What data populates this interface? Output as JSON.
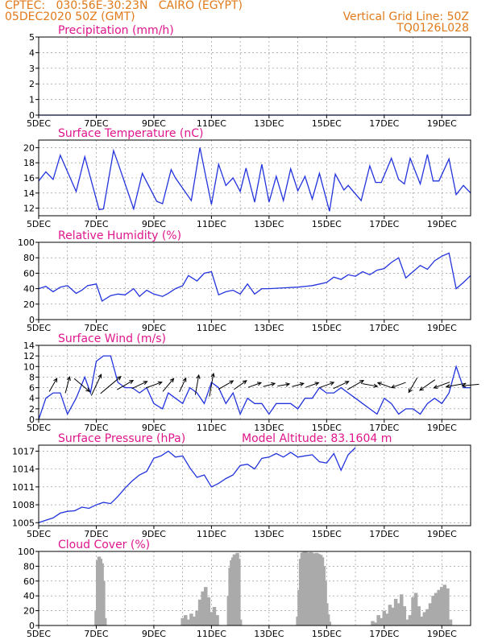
{
  "header": {
    "left_line1": "CPTEC:   030:56E-30:23N   CAIRO (EGYPT)",
    "left_line2": "05DEC2020 50Z (GMT)",
    "right_line1": "Vertical Grid Line: 50Z",
    "right_line2": "TQ0126L028",
    "model_altitude": "Model Altitude: 83.1604 m"
  },
  "colors": {
    "header": "#e07a1a",
    "title": "#e0168c",
    "line": "#2233dd",
    "bar": "#aaaaaa",
    "grid": "#888888"
  },
  "x_tick_labels": [
    "5DEC",
    "7DEC",
    "9DEC",
    "11DEC",
    "13DEC",
    "15DEC",
    "17DEC",
    "19DEC"
  ],
  "chart_data": [
    {
      "type": "line",
      "title": "Precipitation (mm/h)",
      "x_ticks": [
        "5DEC",
        "7DEC",
        "9DEC",
        "11DEC",
        "13DEC",
        "15DEC",
        "17DEC",
        "19DEC"
      ],
      "x_range_days": [
        5,
        20
      ],
      "ylim": [
        0,
        5
      ],
      "yticks": [
        0,
        1,
        2,
        3,
        4,
        5
      ],
      "x": [
        5,
        20
      ],
      "y": [
        0,
        0
      ]
    },
    {
      "type": "line",
      "title": "Surface Temperature (nC)",
      "x_ticks": [
        "5DEC",
        "7DEC",
        "9DEC",
        "11DEC",
        "13DEC",
        "15DEC",
        "17DEC",
        "19DEC"
      ],
      "x_range_days": [
        5,
        20
      ],
      "ylim": [
        11,
        21
      ],
      "yticks": [
        12,
        14,
        16,
        18,
        20
      ],
      "x": [
        5.0,
        5.25,
        5.5,
        5.75,
        6.3,
        6.6,
        7.1,
        7.25,
        7.6,
        7.75,
        8.3,
        8.6,
        9.1,
        9.3,
        9.6,
        9.75,
        10.3,
        10.6,
        11.0,
        11.25,
        11.5,
        11.75,
        12.0,
        12.2,
        12.5,
        12.75,
        13.0,
        13.25,
        13.5,
        13.75,
        14.0,
        14.25,
        14.5,
        14.75,
        15.1,
        15.3,
        15.6,
        15.75,
        16.2,
        16.5,
        16.7,
        16.9,
        17.25,
        17.5,
        17.7,
        17.9,
        18.25,
        18.5,
        18.7,
        18.9,
        19.25,
        19.5,
        19.75,
        20.0
      ],
      "y": [
        15.6,
        16.8,
        15.8,
        19.0,
        14.2,
        18.8,
        11.8,
        11.9,
        19.6,
        18.0,
        11.9,
        16.6,
        12.9,
        12.6,
        17.1,
        16.0,
        13.0,
        20.0,
        12.5,
        17.8,
        15.0,
        16.0,
        14.2,
        17.3,
        12.8,
        17.8,
        12.8,
        16.2,
        13.0,
        17.2,
        14.3,
        16.2,
        13.2,
        16.6,
        11.6,
        16.5,
        14.4,
        15.0,
        13.0,
        17.6,
        15.4,
        15.4,
        18.6,
        15.8,
        15.2,
        18.6,
        15.2,
        19.1,
        15.6,
        15.6,
        18.5,
        13.8,
        15.0,
        14.0
      ]
    },
    {
      "type": "line",
      "title": "Relative Humidity (%)",
      "x_ticks": [
        "5DEC",
        "7DEC",
        "9DEC",
        "11DEC",
        "13DEC",
        "15DEC",
        "17DEC",
        "19DEC"
      ],
      "x_range_days": [
        5,
        20
      ],
      "ylim": [
        0,
        100
      ],
      "yticks": [
        0,
        20,
        40,
        60,
        80,
        100
      ],
      "x": [
        5.0,
        5.25,
        5.5,
        5.75,
        6.0,
        6.3,
        6.5,
        6.7,
        7.0,
        7.2,
        7.5,
        7.75,
        8.0,
        8.3,
        8.5,
        8.75,
        9.0,
        9.3,
        9.5,
        9.75,
        10.0,
        10.2,
        10.5,
        10.75,
        11.0,
        11.25,
        11.5,
        11.75,
        12.0,
        12.25,
        12.5,
        12.75,
        13.0,
        13.5,
        14.0,
        14.5,
        15.0,
        15.25,
        15.5,
        15.75,
        16.0,
        16.25,
        16.5,
        16.75,
        17.0,
        17.25,
        17.5,
        17.75,
        18.0,
        18.25,
        18.5,
        18.75,
        19.0,
        19.25,
        19.5,
        19.75,
        20.0
      ],
      "y": [
        40,
        43,
        36,
        42,
        44,
        34,
        38,
        44,
        46,
        24,
        31,
        33,
        32,
        40,
        30,
        38,
        33,
        30,
        34,
        40,
        44,
        57,
        50,
        60,
        62,
        32,
        36,
        38,
        33,
        46,
        33,
        40,
        40,
        41,
        42,
        44,
        48,
        55,
        52,
        58,
        56,
        62,
        58,
        64,
        66,
        74,
        80,
        54,
        62,
        70,
        65,
        76,
        82,
        86,
        40,
        48,
        57
      ]
    },
    {
      "type": "line",
      "title": "Surface Wind (m/s)",
      "x_ticks": [
        "5DEC",
        "7DEC",
        "9DEC",
        "11DEC",
        "13DEC",
        "15DEC",
        "17DEC",
        "19DEC"
      ],
      "x_range_days": [
        5,
        20
      ],
      "ylim": [
        0,
        14
      ],
      "yticks": [
        0,
        2,
        4,
        6,
        8,
        10,
        12,
        14
      ],
      "x": [
        5.0,
        5.25,
        5.5,
        5.75,
        6.0,
        6.3,
        6.6,
        6.8,
        7.0,
        7.25,
        7.5,
        7.75,
        8.0,
        8.25,
        8.5,
        8.75,
        9.0,
        9.3,
        9.5,
        9.75,
        10.0,
        10.25,
        10.5,
        10.75,
        11.0,
        11.25,
        11.5,
        11.75,
        12.0,
        12.25,
        12.5,
        12.75,
        13.0,
        13.25,
        13.5,
        13.75,
        14.0,
        14.25,
        14.5,
        14.75,
        15.0,
        15.25,
        15.5,
        15.75,
        16.0,
        16.25,
        16.5,
        16.75,
        17.0,
        17.25,
        17.5,
        17.75,
        18.0,
        18.25,
        18.5,
        18.75,
        19.0,
        19.25,
        19.5,
        19.75,
        20.0
      ],
      "y": [
        0,
        4,
        5,
        5,
        1,
        4,
        8,
        5,
        11,
        12,
        12,
        7,
        6,
        6,
        5,
        6,
        3,
        2,
        5,
        4,
        3,
        6,
        5,
        3,
        7,
        6,
        3,
        5,
        1,
        4,
        3,
        3,
        1,
        3,
        3,
        3,
        2,
        4,
        4,
        6,
        5,
        5,
        6,
        5,
        4,
        3,
        2,
        1,
        4,
        3,
        1,
        2,
        2,
        1,
        3,
        4,
        3,
        5,
        10,
        6,
        6
      ],
      "wind_vectors": [
        {
          "day": 5.5,
          "dir_deg": 60,
          "speed": 5
        },
        {
          "day": 6.0,
          "dir_deg": 75,
          "speed": 6
        },
        {
          "day": 6.5,
          "dir_deg": -40,
          "speed": 8
        },
        {
          "day": 7.0,
          "dir_deg": 65,
          "speed": 10
        },
        {
          "day": 7.5,
          "dir_deg": 40,
          "speed": 12
        },
        {
          "day": 8.0,
          "dir_deg": 30,
          "speed": 7
        },
        {
          "day": 8.5,
          "dir_deg": 25,
          "speed": 6
        },
        {
          "day": 9.0,
          "dir_deg": 20,
          "speed": 6
        },
        {
          "day": 9.5,
          "dir_deg": 50,
          "speed": 6
        },
        {
          "day": 10.0,
          "dir_deg": 65,
          "speed": 5
        },
        {
          "day": 10.5,
          "dir_deg": 80,
          "speed": 8
        },
        {
          "day": 11.0,
          "dir_deg": 80,
          "speed": 10
        },
        {
          "day": 11.5,
          "dir_deg": 30,
          "speed": 6
        },
        {
          "day": 12.0,
          "dir_deg": 35,
          "speed": 5
        },
        {
          "day": 12.5,
          "dir_deg": 20,
          "speed": 4
        },
        {
          "day": 13.0,
          "dir_deg": 15,
          "speed": 3
        },
        {
          "day": 13.5,
          "dir_deg": 10,
          "speed": 3
        },
        {
          "day": 14.0,
          "dir_deg": 15,
          "speed": 3
        },
        {
          "day": 14.5,
          "dir_deg": 20,
          "speed": 4
        },
        {
          "day": 15.0,
          "dir_deg": 20,
          "speed": 5
        },
        {
          "day": 15.5,
          "dir_deg": 25,
          "speed": 6
        },
        {
          "day": 16.0,
          "dir_deg": 30,
          "speed": 7
        },
        {
          "day": 16.5,
          "dir_deg": -10,
          "speed": 5
        },
        {
          "day": 17.0,
          "dir_deg": 160,
          "speed": 4
        },
        {
          "day": 17.5,
          "dir_deg": 200,
          "speed": 5
        },
        {
          "day": 18.0,
          "dir_deg": 240,
          "speed": 6
        },
        {
          "day": 18.5,
          "dir_deg": 215,
          "speed": 7
        },
        {
          "day": 19.0,
          "dir_deg": 200,
          "speed": 6
        },
        {
          "day": 19.5,
          "dir_deg": 190,
          "speed": 8
        },
        {
          "day": 20.0,
          "dir_deg": 185,
          "speed": 6
        }
      ]
    },
    {
      "type": "line",
      "title": "Surface Pressure (hPa)",
      "x_ticks": [
        "5DEC",
        "7DEC",
        "9DEC",
        "11DEC",
        "13DEC",
        "15DEC",
        "17DEC",
        "19DEC"
      ],
      "x_range_days": [
        5,
        20
      ],
      "ylim": [
        1004.5,
        1018
      ],
      "yticks": [
        1005,
        1008,
        1011,
        1014,
        1017
      ],
      "x": [
        5.0,
        5.25,
        5.5,
        5.75,
        6.0,
        6.25,
        6.5,
        6.75,
        7.0,
        7.25,
        7.5,
        7.75,
        8.0,
        8.25,
        8.5,
        8.75,
        9.0,
        9.25,
        9.5,
        9.75,
        10.0,
        10.25,
        10.5,
        10.75,
        11.0,
        11.25,
        11.5,
        11.75,
        12.0,
        12.25,
        12.5,
        12.75,
        13.0,
        13.25,
        13.5,
        13.75,
        14.0,
        14.25,
        14.5,
        14.75,
        15.0,
        15.25,
        15.5,
        15.75,
        16.0
      ],
      "y": [
        1005.0,
        1005.4,
        1005.8,
        1006.6,
        1006.9,
        1007.0,
        1007.6,
        1007.4,
        1008.0,
        1008.4,
        1008.2,
        1009.4,
        1010.8,
        1012.0,
        1013.0,
        1013.6,
        1015.8,
        1016.2,
        1017.0,
        1016.0,
        1016.2,
        1014.2,
        1012.6,
        1013.0,
        1011.0,
        1011.6,
        1012.4,
        1013.0,
        1014.6,
        1014.8,
        1014.0,
        1015.8,
        1016.0,
        1016.6,
        1016.0,
        1016.8,
        1016.0,
        1016.2,
        1016.4,
        1015.2,
        1015.0,
        1016.6,
        1013.8,
        1016.4,
        1017.6
      ]
    },
    {
      "type": "bar",
      "title": "Cloud Cover (%)",
      "x_ticks": [
        "5DEC",
        "7DEC",
        "9DEC",
        "11DEC",
        "13DEC",
        "15DEC",
        "17DEC",
        "19DEC"
      ],
      "x_range_days": [
        5,
        20
      ],
      "ylim": [
        0,
        100
      ],
      "yticks": [
        0,
        20,
        40,
        60,
        80,
        100
      ],
      "x": [
        7.0,
        7.05,
        7.1,
        7.15,
        7.2,
        7.25,
        7.3,
        10.0,
        10.1,
        10.2,
        10.3,
        10.4,
        10.5,
        10.6,
        10.7,
        10.8,
        10.9,
        11.0,
        11.1,
        11.2,
        11.6,
        11.65,
        11.7,
        11.75,
        11.8,
        11.85,
        11.9,
        11.95,
        12.0,
        14.0,
        14.05,
        14.1,
        14.15,
        14.2,
        14.25,
        14.3,
        14.35,
        14.4,
        14.45,
        14.5,
        14.55,
        14.6,
        14.65,
        14.7,
        14.75,
        14.8,
        14.85,
        14.9,
        14.95,
        15.0,
        15.05,
        15.1,
        16.6,
        16.7,
        16.8,
        16.9,
        17.0,
        17.1,
        17.2,
        17.3,
        17.4,
        17.5,
        17.6,
        17.7,
        17.8,
        17.9,
        18.0,
        18.1,
        18.2,
        18.3,
        18.4,
        18.5,
        18.6,
        18.7,
        18.8,
        18.9,
        19.0,
        19.1,
        19.2,
        19.3
      ],
      "values": [
        20,
        88,
        93,
        90,
        84,
        60,
        10,
        10,
        14,
        8,
        16,
        12,
        20,
        35,
        46,
        52,
        38,
        18,
        25,
        14,
        40,
        78,
        88,
        92,
        96,
        95,
        98,
        90,
        8,
        12,
        48,
        90,
        98,
        99,
        100,
        99,
        98,
        97,
        99,
        98,
        96,
        97,
        98,
        97,
        96,
        95,
        92,
        80,
        60,
        30,
        15,
        5,
        6,
        4,
        14,
        10,
        20,
        16,
        28,
        24,
        36,
        30,
        42,
        26,
        8,
        14,
        38,
        44,
        26,
        12,
        18,
        22,
        30,
        40,
        44,
        48,
        52,
        55,
        50,
        8
      ]
    }
  ]
}
